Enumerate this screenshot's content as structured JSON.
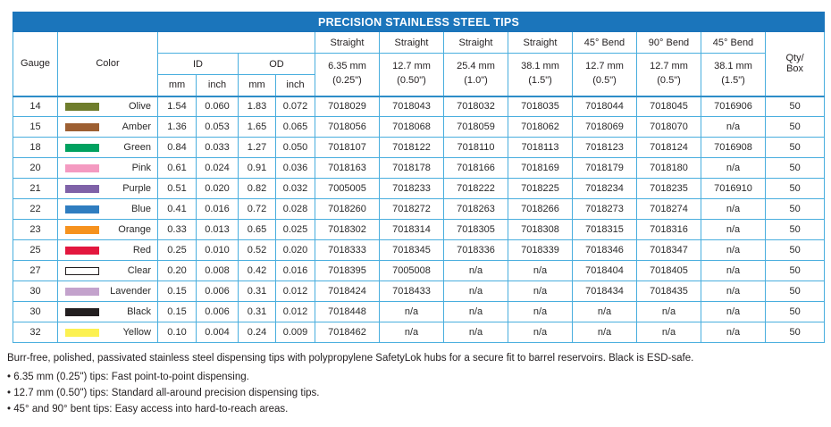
{
  "title": "PRECISION STAINLESS STEEL TIPS",
  "columns": {
    "gauge": "Gauge",
    "color": "Color",
    "id": "ID",
    "od": "OD",
    "mm": "mm",
    "inch": "inch",
    "qty_line1": "Qty/",
    "qty_line2": "Box"
  },
  "products": [
    {
      "type": "Straight",
      "size": "6.35 mm",
      "size2": "(0.25\")"
    },
    {
      "type": "Straight",
      "size": "12.7 mm",
      "size2": "(0.50\")"
    },
    {
      "type": "Straight",
      "size": "25.4 mm",
      "size2": "(1.0\")"
    },
    {
      "type": "Straight",
      "size": "38.1 mm",
      "size2": "(1.5\")"
    },
    {
      "type": "45° Bend",
      "size": "12.7 mm",
      "size2": "(0.5\")"
    },
    {
      "type": "90° Bend",
      "size": "12.7 mm",
      "size2": "(0.5\")"
    },
    {
      "type": "45° Bend",
      "size": "38.1 mm",
      "size2": "(1.5\")"
    }
  ],
  "rows": [
    {
      "gauge": "14",
      "color": "Olive",
      "swatch": "#6f7d2c",
      "id_mm": "1.54",
      "id_inch": "0.060",
      "od_mm": "1.83",
      "od_inch": "0.072",
      "parts": [
        "7018029",
        "7018043",
        "7018032",
        "7018035",
        "7018044",
        "7018045",
        "7016906"
      ],
      "qty": "50"
    },
    {
      "gauge": "15",
      "color": "Amber",
      "swatch": "#9d5f32",
      "id_mm": "1.36",
      "id_inch": "0.053",
      "od_mm": "1.65",
      "od_inch": "0.065",
      "parts": [
        "7018056",
        "7018068",
        "7018059",
        "7018062",
        "7018069",
        "7018070",
        "n/a"
      ],
      "qty": "50"
    },
    {
      "gauge": "18",
      "color": "Green",
      "swatch": "#00a15f",
      "id_mm": "0.84",
      "id_inch": "0.033",
      "od_mm": "1.27",
      "od_inch": "0.050",
      "parts": [
        "7018107",
        "7018122",
        "7018110",
        "7018113",
        "7018123",
        "7018124",
        "7016908"
      ],
      "qty": "50"
    },
    {
      "gauge": "20",
      "color": "Pink",
      "swatch": "#f49ac1",
      "id_mm": "0.61",
      "id_inch": "0.024",
      "od_mm": "0.91",
      "od_inch": "0.036",
      "parts": [
        "7018163",
        "7018178",
        "7018166",
        "7018169",
        "7018179",
        "7018180",
        "n/a"
      ],
      "qty": "50"
    },
    {
      "gauge": "21",
      "color": "Purple",
      "swatch": "#7f62a8",
      "id_mm": "0.51",
      "id_inch": "0.020",
      "od_mm": "0.82",
      "od_inch": "0.032",
      "parts": [
        "7005005",
        "7018233",
        "7018222",
        "7018225",
        "7018234",
        "7018235",
        "7016910"
      ],
      "qty": "50"
    },
    {
      "gauge": "22",
      "color": "Blue",
      "swatch": "#2f7dc0",
      "id_mm": "0.41",
      "id_inch": "0.016",
      "od_mm": "0.72",
      "od_inch": "0.028",
      "parts": [
        "7018260",
        "7018272",
        "7018263",
        "7018266",
        "7018273",
        "7018274",
        "n/a"
      ],
      "qty": "50"
    },
    {
      "gauge": "23",
      "color": "Orange",
      "swatch": "#f6921e",
      "id_mm": "0.33",
      "id_inch": "0.013",
      "od_mm": "0.65",
      "od_inch": "0.025",
      "parts": [
        "7018302",
        "7018314",
        "7018305",
        "7018308",
        "7018315",
        "7018316",
        "n/a"
      ],
      "qty": "50"
    },
    {
      "gauge": "25",
      "color": "Red",
      "swatch": "#e3173e",
      "id_mm": "0.25",
      "id_inch": "0.010",
      "od_mm": "0.52",
      "od_inch": "0.020",
      "parts": [
        "7018333",
        "7018345",
        "7018336",
        "7018339",
        "7018346",
        "7018347",
        "n/a"
      ],
      "qty": "50"
    },
    {
      "gauge": "27",
      "color": "Clear",
      "swatch": "#ffffff",
      "swatch_border": "#231f20",
      "id_mm": "0.20",
      "id_inch": "0.008",
      "od_mm": "0.42",
      "od_inch": "0.016",
      "parts": [
        "7018395",
        "7005008",
        "n/a",
        "n/a",
        "7018404",
        "7018405",
        "n/a"
      ],
      "qty": "50"
    },
    {
      "gauge": "30",
      "color": "Lavender",
      "swatch": "#c3a2cc",
      "id_mm": "0.15",
      "id_inch": "0.006",
      "od_mm": "0.31",
      "od_inch": "0.012",
      "parts": [
        "7018424",
        "7018433",
        "n/a",
        "n/a",
        "7018434",
        "7018435",
        "n/a"
      ],
      "qty": "50"
    },
    {
      "gauge": "30",
      "color": "Black",
      "swatch": "#231f20",
      "id_mm": "0.15",
      "id_inch": "0.006",
      "od_mm": "0.31",
      "od_inch": "0.012",
      "parts": [
        "7018448",
        "n/a",
        "n/a",
        "n/a",
        "n/a",
        "n/a",
        "n/a"
      ],
      "qty": "50"
    },
    {
      "gauge": "32",
      "color": "Yellow",
      "swatch": "#fcf151",
      "id_mm": "0.10",
      "id_inch": "0.004",
      "od_mm": "0.24",
      "od_inch": "0.009",
      "parts": [
        "7018462",
        "n/a",
        "n/a",
        "n/a",
        "n/a",
        "n/a",
        "n/a"
      ],
      "qty": "50"
    }
  ],
  "notes": {
    "intro": "Burr-free, polished, passivated stainless steel dispensing tips with polypropylene SafetyLok hubs for a secure fit to barrel reservoirs. Black is ESD-safe.",
    "bullets": [
      "6.35 mm (0.25\") tips: Fast point-to-point dispensing.",
      "12.7 mm (0.50\") tips: Standard all-around precision dispensing tips.",
      "45° and 90° bent tips: Easy access into hard-to-reach areas."
    ]
  },
  "colors": {
    "header_bg": "#1b75bb",
    "grid": "#49aede"
  }
}
